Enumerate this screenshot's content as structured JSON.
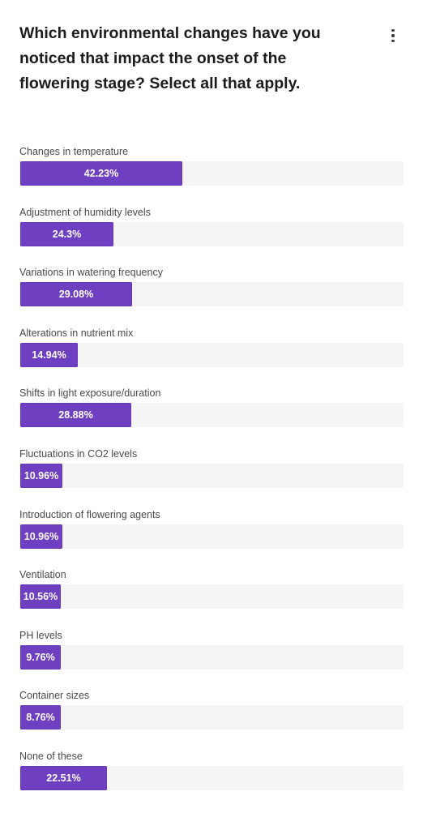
{
  "poll": {
    "question": "Which environmental changes have you noticed that impact the onset of the flowering stage? Select all that apply.",
    "menu_icon": "more-vertical-icon",
    "accent_color": "#6f3fc1",
    "track_color": "#f5f5f5"
  },
  "options": [
    {
      "label": "Changes in temperature",
      "percent_text": "42.23%",
      "value": 42.23
    },
    {
      "label": "Adjustment of humidity levels",
      "percent_text": "24.3%",
      "value": 24.3
    },
    {
      "label": "Variations in watering frequency",
      "percent_text": "29.08%",
      "value": 29.08
    },
    {
      "label": "Alterations in nutrient mix",
      "percent_text": "14.94%",
      "value": 14.94
    },
    {
      "label": "Shifts in light exposure/duration",
      "percent_text": "28.88%",
      "value": 28.88
    },
    {
      "label": "Fluctuations in CO2 levels",
      "percent_text": "10.96%",
      "value": 10.96
    },
    {
      "label": "Introduction of flowering agents",
      "percent_text": "10.96%",
      "value": 10.96
    },
    {
      "label": "Ventilation",
      "percent_text": "10.56%",
      "value": 10.56
    },
    {
      "label": "PH levels",
      "percent_text": "9.76%",
      "value": 9.76
    },
    {
      "label": "Container sizes",
      "percent_text": "8.76%",
      "value": 8.76
    },
    {
      "label": "None of these",
      "percent_text": "22.51%",
      "value": 22.51
    }
  ]
}
